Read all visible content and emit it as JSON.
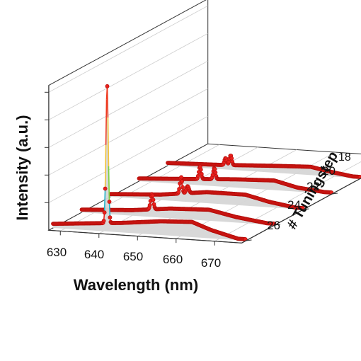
{
  "chart_data": {
    "type": "line",
    "style": "3d-waterfall",
    "xlabel": "Wavelength (nm)",
    "ylabel": "Intensity (a.u.)",
    "zlabel": "# Tuningstep",
    "x_ticks": [
      "630",
      "640",
      "650",
      "660",
      "670"
    ],
    "xlim": [
      627,
      677
    ],
    "z_ticks": [
      "18",
      "20",
      "22",
      "24",
      "26"
    ],
    "grid": true,
    "colors": {
      "line": "#e8201c",
      "marker": "#e8201c",
      "marker_edge": "#b10d0a",
      "fill": "#d6d6d6",
      "axis": "#333333",
      "grid": "#cccccc",
      "peak_colormap": [
        "#2a5bd7",
        "#24b4c9",
        "#7ccf3c",
        "#f2c43a",
        "#ef3a20"
      ]
    },
    "series": [
      {
        "name": "26",
        "peaks": [
          [
            641.0,
            1.0,
            0.3
          ]
        ],
        "baseline": [
          [
            627,
            0.03
          ],
          [
            636,
            0.05
          ],
          [
            645,
            0.07
          ],
          [
            655,
            0.1
          ],
          [
            663,
            0.11
          ],
          [
            668,
            0.06
          ],
          [
            675,
            0.01
          ]
        ]
      },
      {
        "name": "24",
        "peaks": [
          [
            645.2,
            0.11,
            0.35
          ]
        ],
        "baseline": [
          [
            627,
            0.02
          ],
          [
            640,
            0.04
          ],
          [
            650,
            0.07
          ],
          [
            660,
            0.08
          ],
          [
            667,
            0.04
          ],
          [
            675,
            0.01
          ]
        ]
      },
      {
        "name": "22",
        "peaks": [
          [
            645.3,
            0.12,
            0.3
          ],
          [
            647.0,
            0.05,
            0.35
          ]
        ],
        "baseline": [
          [
            627,
            0.02
          ],
          [
            640,
            0.04
          ],
          [
            652,
            0.08
          ],
          [
            662,
            0.08
          ],
          [
            668,
            0.04
          ],
          [
            675,
            0.01
          ]
        ]
      },
      {
        "name": "20",
        "peaks": [
          [
            642.8,
            0.09,
            0.3
          ],
          [
            646.5,
            0.08,
            0.3
          ]
        ],
        "baseline": [
          [
            627,
            0.02
          ],
          [
            640,
            0.04
          ],
          [
            652,
            0.06
          ],
          [
            662,
            0.07
          ],
          [
            668,
            0.03
          ],
          [
            675,
            0.01
          ]
        ]
      },
      {
        "name": "18",
        "peaks": [
          [
            642.0,
            0.05,
            0.3
          ],
          [
            643.3,
            0.07,
            0.3
          ]
        ],
        "baseline": [
          [
            627,
            0.02
          ],
          [
            640,
            0.03
          ],
          [
            655,
            0.05
          ],
          [
            664,
            0.06
          ],
          [
            670,
            0.03
          ],
          [
            675,
            0.01
          ]
        ]
      }
    ]
  }
}
